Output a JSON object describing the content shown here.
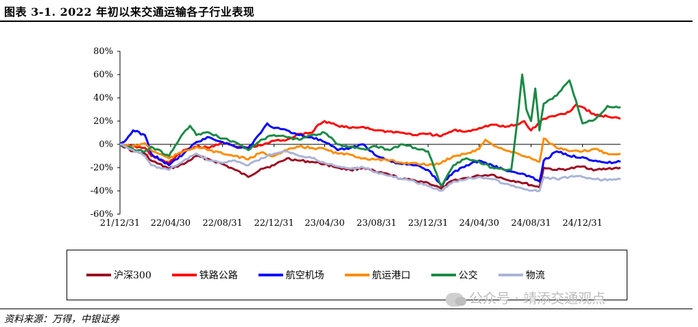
{
  "header": {
    "title": "图表 3-1. 2022 年初以来交通运输各子行业表现"
  },
  "footer": {
    "source": "资料来源：万得，中银证券"
  },
  "watermark": {
    "text": "公众号 · 靖添交通观点",
    "icon": "wechat-icon"
  },
  "chart_data": {
    "type": "line",
    "title": "",
    "xlabel": "",
    "ylabel": "",
    "ylim": [
      -60,
      80
    ],
    "yticks": [
      "80%",
      "60%",
      "40%",
      "20%",
      "0%",
      "-20%",
      "-40%",
      "-60%"
    ],
    "ytick_values": [
      80,
      60,
      40,
      20,
      0,
      -20,
      -40,
      -60
    ],
    "xtick_labels": [
      "21/12/31",
      "22/04/30",
      "22/08/31",
      "22/12/31",
      "23/04/30",
      "23/08/31",
      "23/12/31",
      "24/04/30",
      "24/08/31",
      "24/12/31"
    ],
    "xtick_dates": [
      "2021-12-31",
      "2022-04-30",
      "2022-08-31",
      "2022-12-31",
      "2023-04-30",
      "2023-08-31",
      "2023-12-31",
      "2024-04-30",
      "2024-08-31",
      "2024-12-31"
    ],
    "x_range": [
      "2021-12-31",
      "2025-03-31"
    ],
    "grid": false,
    "legend_position": "bottom",
    "series": [
      {
        "name": "沪深300",
        "color": "#9b0a21",
        "points": [
          [
            "2021-12-31",
            0
          ],
          [
            "2022-01-31",
            -6
          ],
          [
            "2022-02-28",
            -8
          ],
          [
            "2022-03-15",
            -14
          ],
          [
            "2022-04-26",
            -21
          ],
          [
            "2022-05-31",
            -17
          ],
          [
            "2022-06-30",
            -10
          ],
          [
            "2022-07-31",
            -13
          ],
          [
            "2022-08-31",
            -17
          ],
          [
            "2022-09-30",
            -22
          ],
          [
            "2022-10-31",
            -28
          ],
          [
            "2022-11-30",
            -21
          ],
          [
            "2022-12-31",
            -18
          ],
          [
            "2023-01-31",
            -12
          ],
          [
            "2023-02-28",
            -14
          ],
          [
            "2023-03-31",
            -15
          ],
          [
            "2023-04-30",
            -17
          ],
          [
            "2023-05-31",
            -20
          ],
          [
            "2023-06-30",
            -22
          ],
          [
            "2023-07-31",
            -20
          ],
          [
            "2023-08-31",
            -24
          ],
          [
            "2023-09-30",
            -26
          ],
          [
            "2023-10-31",
            -30
          ],
          [
            "2023-11-30",
            -31
          ],
          [
            "2023-12-31",
            -33
          ],
          [
            "2024-01-31",
            -38
          ],
          [
            "2024-02-29",
            -31
          ],
          [
            "2024-03-31",
            -29
          ],
          [
            "2024-04-30",
            -27
          ],
          [
            "2024-05-31",
            -26
          ],
          [
            "2024-06-30",
            -30
          ],
          [
            "2024-07-31",
            -32
          ],
          [
            "2024-08-31",
            -35
          ],
          [
            "2024-09-20",
            -37
          ],
          [
            "2024-09-30",
            -20
          ],
          [
            "2024-10-31",
            -22
          ],
          [
            "2024-11-30",
            -21
          ],
          [
            "2024-12-31",
            -19
          ],
          [
            "2025-01-31",
            -22
          ],
          [
            "2025-02-28",
            -21
          ],
          [
            "2025-03-31",
            -20
          ]
        ]
      },
      {
        "name": "铁路公路",
        "color": "#ff0000",
        "points": [
          [
            "2021-12-31",
            0
          ],
          [
            "2022-01-31",
            -2
          ],
          [
            "2022-02-28",
            -3
          ],
          [
            "2022-03-15",
            -10
          ],
          [
            "2022-04-26",
            -16
          ],
          [
            "2022-05-31",
            -5
          ],
          [
            "2022-06-30",
            -2
          ],
          [
            "2022-07-31",
            -3
          ],
          [
            "2022-08-31",
            2
          ],
          [
            "2022-09-30",
            -2
          ],
          [
            "2022-10-31",
            -3
          ],
          [
            "2022-11-30",
            -1
          ],
          [
            "2022-12-31",
            3
          ],
          [
            "2023-01-31",
            4
          ],
          [
            "2023-02-28",
            9
          ],
          [
            "2023-03-31",
            10
          ],
          [
            "2023-04-15",
            17
          ],
          [
            "2023-04-30",
            20
          ],
          [
            "2023-05-31",
            16
          ],
          [
            "2023-06-30",
            14
          ],
          [
            "2023-07-31",
            15
          ],
          [
            "2023-08-31",
            12
          ],
          [
            "2023-09-30",
            11
          ],
          [
            "2023-10-31",
            10
          ],
          [
            "2023-11-30",
            8
          ],
          [
            "2023-12-31",
            9
          ],
          [
            "2024-01-31",
            7
          ],
          [
            "2024-02-29",
            12
          ],
          [
            "2024-03-31",
            11
          ],
          [
            "2024-04-30",
            14
          ],
          [
            "2024-05-31",
            17
          ],
          [
            "2024-06-30",
            15
          ],
          [
            "2024-07-31",
            17
          ],
          [
            "2024-08-15",
            20
          ],
          [
            "2024-08-31",
            12
          ],
          [
            "2024-09-30",
            22
          ],
          [
            "2024-10-31",
            25
          ],
          [
            "2024-11-30",
            28
          ],
          [
            "2024-12-15",
            34
          ],
          [
            "2024-12-31",
            32
          ],
          [
            "2025-01-31",
            25
          ],
          [
            "2025-02-28",
            24
          ],
          [
            "2025-03-31",
            22
          ]
        ]
      },
      {
        "name": "航空机场",
        "color": "#0000ff",
        "points": [
          [
            "2021-12-31",
            0
          ],
          [
            "2022-01-15",
            4
          ],
          [
            "2022-01-31",
            12
          ],
          [
            "2022-02-28",
            8
          ],
          [
            "2022-03-15",
            -8
          ],
          [
            "2022-04-26",
            -18
          ],
          [
            "2022-05-31",
            -8
          ],
          [
            "2022-06-30",
            2
          ],
          [
            "2022-07-31",
            6
          ],
          [
            "2022-08-31",
            2
          ],
          [
            "2022-09-30",
            -2
          ],
          [
            "2022-10-31",
            -3
          ],
          [
            "2022-11-30",
            10
          ],
          [
            "2022-12-15",
            18
          ],
          [
            "2022-12-31",
            14
          ],
          [
            "2023-01-31",
            12
          ],
          [
            "2023-02-28",
            8
          ],
          [
            "2023-03-31",
            6
          ],
          [
            "2023-04-30",
            2
          ],
          [
            "2023-05-31",
            -5
          ],
          [
            "2023-06-30",
            -3
          ],
          [
            "2023-07-31",
            0
          ],
          [
            "2023-08-31",
            -10
          ],
          [
            "2023-09-30",
            -14
          ],
          [
            "2023-10-31",
            -17
          ],
          [
            "2023-11-30",
            -18
          ],
          [
            "2023-12-31",
            -22
          ],
          [
            "2024-01-31",
            -35
          ],
          [
            "2024-02-29",
            -24
          ],
          [
            "2024-03-31",
            -18
          ],
          [
            "2024-04-30",
            -14
          ],
          [
            "2024-05-31",
            -18
          ],
          [
            "2024-06-30",
            -22
          ],
          [
            "2024-07-31",
            -25
          ],
          [
            "2024-08-31",
            -28
          ],
          [
            "2024-09-20",
            -32
          ],
          [
            "2024-09-30",
            -14
          ],
          [
            "2024-10-31",
            -6
          ],
          [
            "2024-11-30",
            -10
          ],
          [
            "2024-12-31",
            -11
          ],
          [
            "2025-01-31",
            -14
          ],
          [
            "2025-02-28",
            -16
          ],
          [
            "2025-03-31",
            -15
          ]
        ]
      },
      {
        "name": "航运港口",
        "color": "#ff8c00",
        "points": [
          [
            "2021-12-31",
            0
          ],
          [
            "2022-01-31",
            -2
          ],
          [
            "2022-02-28",
            1
          ],
          [
            "2022-03-15",
            -5
          ],
          [
            "2022-04-26",
            -12
          ],
          [
            "2022-05-31",
            -6
          ],
          [
            "2022-06-30",
            -2
          ],
          [
            "2022-07-31",
            -5
          ],
          [
            "2022-08-31",
            -8
          ],
          [
            "2022-09-30",
            -10
          ],
          [
            "2022-10-31",
            -13
          ],
          [
            "2022-11-30",
            -7
          ],
          [
            "2022-12-31",
            -10
          ],
          [
            "2023-01-31",
            -5
          ],
          [
            "2023-02-28",
            -2
          ],
          [
            "2023-03-31",
            -3
          ],
          [
            "2023-04-30",
            -4
          ],
          [
            "2023-05-31",
            -8
          ],
          [
            "2023-06-30",
            -9
          ],
          [
            "2023-07-31",
            -12
          ],
          [
            "2023-08-31",
            -13
          ],
          [
            "2023-09-30",
            -14
          ],
          [
            "2023-10-31",
            -16
          ],
          [
            "2023-11-30",
            -16
          ],
          [
            "2023-12-31",
            -18
          ],
          [
            "2024-01-31",
            -16
          ],
          [
            "2024-02-29",
            -10
          ],
          [
            "2024-03-31",
            -8
          ],
          [
            "2024-04-30",
            -4
          ],
          [
            "2024-05-15",
            4
          ],
          [
            "2024-05-31",
            0
          ],
          [
            "2024-06-30",
            -5
          ],
          [
            "2024-07-31",
            -8
          ],
          [
            "2024-08-31",
            -12
          ],
          [
            "2024-09-20",
            -15
          ],
          [
            "2024-09-30",
            5
          ],
          [
            "2024-10-31",
            -3
          ],
          [
            "2024-11-30",
            -6
          ],
          [
            "2024-12-31",
            -6
          ],
          [
            "2025-01-31",
            -4
          ],
          [
            "2025-02-28",
            -8
          ],
          [
            "2025-03-31",
            -8
          ]
        ]
      },
      {
        "name": "公交",
        "color": "#1a8a46",
        "points": [
          [
            "2021-12-31",
            0
          ],
          [
            "2022-01-31",
            -4
          ],
          [
            "2022-02-28",
            -6
          ],
          [
            "2022-03-15",
            -2
          ],
          [
            "2022-04-26",
            -10
          ],
          [
            "2022-05-31",
            10
          ],
          [
            "2022-06-15",
            16
          ],
          [
            "2022-06-30",
            8
          ],
          [
            "2022-07-31",
            10
          ],
          [
            "2022-08-31",
            5
          ],
          [
            "2022-09-30",
            2
          ],
          [
            "2022-10-31",
            -5
          ],
          [
            "2022-11-30",
            4
          ],
          [
            "2022-12-31",
            8
          ],
          [
            "2023-01-31",
            6
          ],
          [
            "2023-02-28",
            4
          ],
          [
            "2023-03-31",
            8
          ],
          [
            "2023-04-30",
            10
          ],
          [
            "2023-05-31",
            0
          ],
          [
            "2023-06-30",
            -2
          ],
          [
            "2023-07-31",
            -4
          ],
          [
            "2023-08-31",
            -2
          ],
          [
            "2023-09-30",
            -5
          ],
          [
            "2023-10-31",
            0
          ],
          [
            "2023-11-30",
            -3
          ],
          [
            "2023-12-31",
            -6
          ],
          [
            "2024-01-31",
            -36
          ],
          [
            "2024-02-29",
            -18
          ],
          [
            "2024-03-31",
            -12
          ],
          [
            "2024-04-30",
            -15
          ],
          [
            "2024-05-31",
            -20
          ],
          [
            "2024-06-30",
            -22
          ],
          [
            "2024-07-15",
            -22
          ],
          [
            "2024-07-31",
            25
          ],
          [
            "2024-08-10",
            60
          ],
          [
            "2024-08-20",
            30
          ],
          [
            "2024-08-31",
            20
          ],
          [
            "2024-09-10",
            48
          ],
          [
            "2024-09-20",
            12
          ],
          [
            "2024-09-30",
            35
          ],
          [
            "2024-10-31",
            42
          ],
          [
            "2024-11-30",
            55
          ],
          [
            "2024-12-15",
            38
          ],
          [
            "2024-12-31",
            18
          ],
          [
            "2025-01-31",
            22
          ],
          [
            "2025-02-28",
            33
          ],
          [
            "2025-03-31",
            32
          ]
        ]
      },
      {
        "name": "物流",
        "color": "#aab4d8",
        "points": [
          [
            "2021-12-31",
            0
          ],
          [
            "2022-01-31",
            -5
          ],
          [
            "2022-02-28",
            -10
          ],
          [
            "2022-03-15",
            -18
          ],
          [
            "2022-04-26",
            -22
          ],
          [
            "2022-05-31",
            -14
          ],
          [
            "2022-06-30",
            -8
          ],
          [
            "2022-07-31",
            -14
          ],
          [
            "2022-08-31",
            -16
          ],
          [
            "2022-09-30",
            -14
          ],
          [
            "2022-10-31",
            -18
          ],
          [
            "2022-11-30",
            -12
          ],
          [
            "2022-12-31",
            -8
          ],
          [
            "2023-01-31",
            -6
          ],
          [
            "2023-02-28",
            -10
          ],
          [
            "2023-03-31",
            -12
          ],
          [
            "2023-04-30",
            -16
          ],
          [
            "2023-05-31",
            -19
          ],
          [
            "2023-06-30",
            -21
          ],
          [
            "2023-07-31",
            -20
          ],
          [
            "2023-08-31",
            -24
          ],
          [
            "2023-09-30",
            -27
          ],
          [
            "2023-10-31",
            -30
          ],
          [
            "2023-11-30",
            -32
          ],
          [
            "2023-12-31",
            -36
          ],
          [
            "2024-01-31",
            -40
          ],
          [
            "2024-02-29",
            -32
          ],
          [
            "2024-03-31",
            -30
          ],
          [
            "2024-04-30",
            -28
          ],
          [
            "2024-05-31",
            -30
          ],
          [
            "2024-06-30",
            -34
          ],
          [
            "2024-07-31",
            -37
          ],
          [
            "2024-08-31",
            -40
          ],
          [
            "2024-09-20",
            -40
          ],
          [
            "2024-09-30",
            -28
          ],
          [
            "2024-10-31",
            -30
          ],
          [
            "2024-11-30",
            -28
          ],
          [
            "2024-12-31",
            -28
          ],
          [
            "2025-01-31",
            -30
          ],
          [
            "2025-02-28",
            -31
          ],
          [
            "2025-03-31",
            -30
          ]
        ]
      }
    ]
  }
}
